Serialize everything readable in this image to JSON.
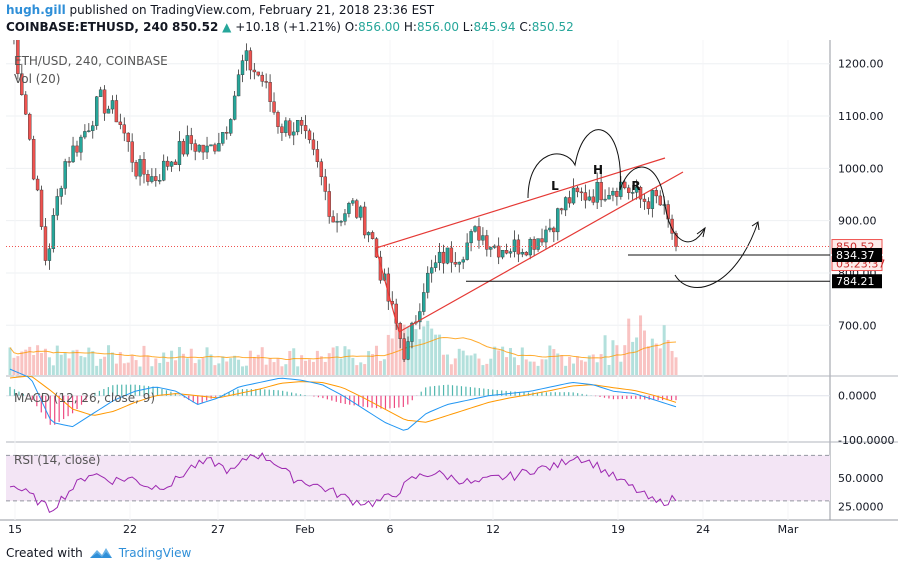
{
  "header": {
    "user": "hugh.gill",
    "published": " published on TradingView.com, February 21, 2018 23:36 EST",
    "symbol": "COINBASE:ETHUSD, 240",
    "last": "850.52",
    "arrow": "▲",
    "change": "+10.18 (+1.21%)",
    "o_label": "O:",
    "o": "856.00",
    "h_label": "H:",
    "h": "856.00",
    "l_label": "L:",
    "l": "845.94",
    "c_label": "C:",
    "c": "850.52"
  },
  "footer": {
    "created": "Created with",
    "brand": "TradingView"
  },
  "colors": {
    "up": "#26a69a",
    "down": "#ef5350",
    "wedge": "#e53935",
    "macd": "#2196f3",
    "signal": "#ff9800",
    "rsi": "#9c27b0",
    "rsi_band": "#f3e5f5"
  },
  "chart_data": [
    {
      "type": "candlestick",
      "legend": "ETH/USD, 240, COINBASE",
      "volume_legend": "Vol (20)",
      "ylim": [
        605,
        1230
      ],
      "yticks": [
        700,
        800,
        900,
        1000,
        1100,
        1200
      ],
      "ytick_labels": [
        "700.00",
        "800.00",
        "900.00",
        "1000.00",
        "1100.00",
        "1200.00"
      ],
      "xtick_labels": [
        "15",
        "22",
        "27",
        "Feb",
        "6",
        "12",
        "19",
        "24",
        "Mar"
      ],
      "price_labels": [
        {
          "text": "850.52",
          "value": 850.52,
          "style": "last"
        },
        {
          "text": "03:23:37",
          "value": 830,
          "style": "timer"
        },
        {
          "text": "834.37",
          "value": 834.37,
          "style": "level"
        },
        {
          "text": "784.21",
          "value": 784.21,
          "style": "level"
        }
      ],
      "horizontal_levels": [
        834.37,
        784.21
      ],
      "annotations": [
        {
          "text": "L",
          "note": "left shoulder"
        },
        {
          "text": "H",
          "note": "head"
        },
        {
          "text": "R",
          "note": "right shoulder"
        }
      ],
      "close_path": [
        [
          "Jan 15",
          1290
        ],
        [
          "Jan 16",
          1080
        ],
        [
          "Jan 17",
          820
        ],
        [
          "Jan 18",
          1010
        ],
        [
          "Jan 19",
          1060
        ],
        [
          "Jan 20",
          1130
        ],
        [
          "Jan 21",
          1100
        ],
        [
          "Jan 22",
          1000
        ],
        [
          "Jan 23",
          980
        ],
        [
          "Jan 24",
          1020
        ],
        [
          "Jan 25",
          1050
        ],
        [
          "Jan 26",
          1030
        ],
        [
          "Jan 27",
          1080
        ],
        [
          "Jan 28",
          1210
        ],
        [
          "Jan 29",
          1170
        ],
        [
          "Jan 30",
          1080
        ],
        [
          "Jan 31",
          1080
        ],
        [
          "Feb 1",
          1010
        ],
        [
          "Feb 2",
          900
        ],
        [
          "Feb 3",
          930
        ],
        [
          "Feb 4",
          880
        ],
        [
          "Feb 5",
          750
        ],
        [
          "Feb 6",
          640
        ],
        [
          "Feb 7",
          780
        ],
        [
          "Feb 8",
          830
        ],
        [
          "Feb 9",
          840
        ],
        [
          "Feb 10",
          880
        ],
        [
          "Feb 11",
          850
        ],
        [
          "Feb 12",
          850
        ],
        [
          "Feb 13",
          860
        ],
        [
          "Feb 14",
          890
        ],
        [
          "Feb 15",
          940
        ],
        [
          "Feb 16",
          950
        ],
        [
          "Feb 17",
          960
        ],
        [
          "Feb 18",
          970
        ],
        [
          "Feb 19",
          940
        ],
        [
          "Feb 20",
          940
        ],
        [
          "Feb 21",
          860
        ]
      ]
    },
    {
      "type": "line",
      "legend": "MACD (12, 26, close, 9)",
      "ylim": [
        -100,
        40
      ],
      "yticks": [
        0,
        -100
      ],
      "ytick_labels": [
        "0.0000",
        "-100.0000"
      ],
      "series": [
        {
          "name": "MACD",
          "values": [
            60,
            40,
            -60,
            -70,
            -40,
            -10,
            10,
            20,
            10,
            -20,
            -5,
            20,
            30,
            40,
            35,
            25,
            0,
            -30,
            -60,
            -80,
            -40,
            -20,
            -10,
            0,
            5,
            10,
            20,
            30,
            25,
            10,
            5,
            -10,
            -25
          ]
        },
        {
          "name": "Signal",
          "values": [
            40,
            45,
            10,
            -30,
            -45,
            -35,
            -15,
            0,
            5,
            0,
            -5,
            5,
            15,
            28,
            32,
            30,
            18,
            -5,
            -30,
            -55,
            -60,
            -45,
            -30,
            -15,
            -5,
            3,
            12,
            22,
            25,
            18,
            12,
            0,
            -15
          ]
        }
      ]
    },
    {
      "type": "line",
      "legend": "RSI (14, close)",
      "ylim": [
        15,
        80
      ],
      "yticks": [
        50,
        25
      ],
      "ytick_labels": [
        "50.0000",
        "25.0000"
      ],
      "band": [
        30,
        70
      ],
      "series": [
        {
          "name": "RSI",
          "values": [
            45,
            35,
            22,
            40,
            55,
            48,
            50,
            42,
            45,
            60,
            65,
            55,
            72,
            66,
            50,
            45,
            38,
            30,
            28,
            35,
            50,
            55,
            50,
            45,
            50,
            52,
            58,
            60,
            70,
            62,
            50,
            40,
            28,
            32
          ]
        }
      ]
    }
  ]
}
